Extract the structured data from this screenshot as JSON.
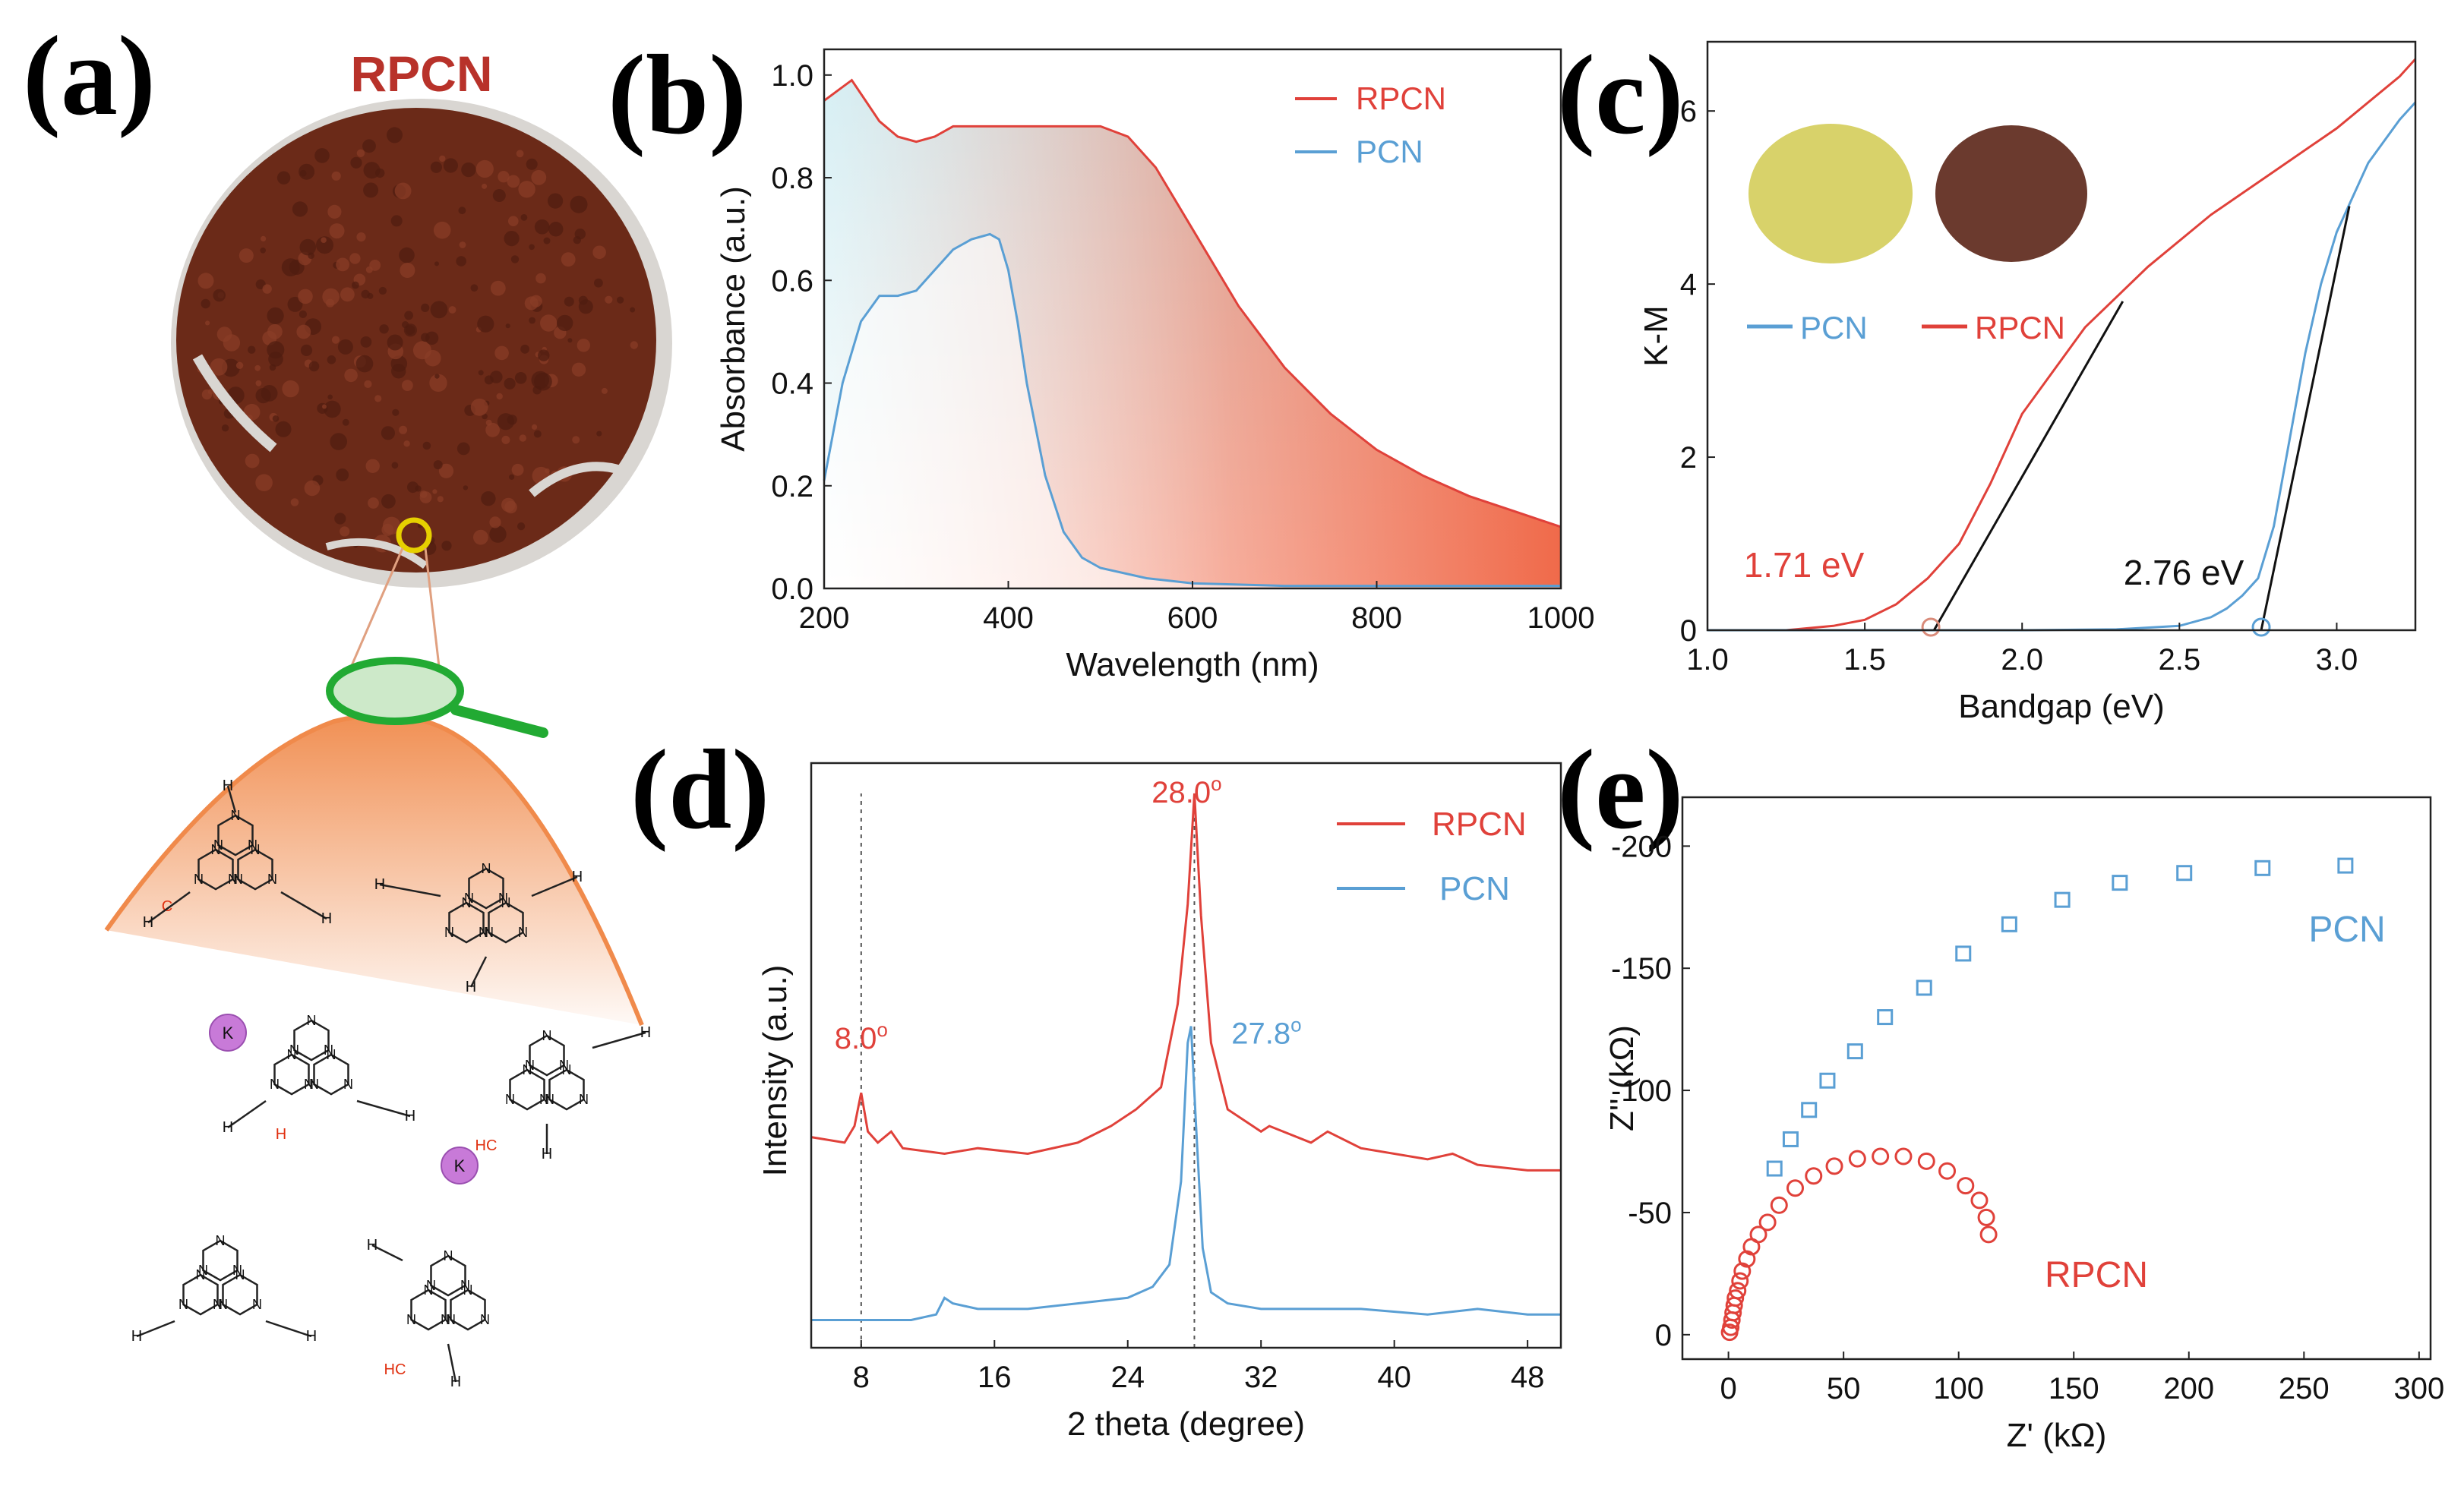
{
  "panel_labels": {
    "a": "(a)",
    "b": "(b)",
    "c": "(c)",
    "d": "(d)",
    "e": "(e)"
  },
  "panel_a": {
    "title": "RPCN",
    "photo_color": "#6b2a18",
    "wedge_color": "#f08a4b",
    "magnifier_color": "#22aa33",
    "ion_label": "K",
    "ion_color": "#c87ad8",
    "defect_label_h": "H",
    "defect_label_c": "C",
    "defect_label_hc": "HC",
    "ring_atom_label": "N",
    "amine_label": "H",
    "defect_color": "#e03010",
    "circle_marker_color": "#e6d000"
  },
  "colors": {
    "rpcn": "#e0413a",
    "pcn": "#5a9fd4",
    "fill_blue": "#bfe6ee",
    "fill_red": "#f06a4a"
  },
  "chart_data": [
    {
      "panel": "b",
      "type": "area",
      "xlabel": "Wavelength (nm)",
      "ylabel": "Absorbance (a.u.)",
      "xlim": [
        200,
        1000
      ],
      "ylim": [
        0,
        1.05
      ],
      "xticks": [
        200,
        400,
        600,
        800,
        1000
      ],
      "xtick_labels": [
        "200",
        "400",
        "600",
        "800",
        "1000"
      ],
      "yticks": [
        0.0,
        0.2,
        0.4,
        0.6,
        0.8,
        1.0
      ],
      "ytick_labels": [
        "0.0",
        "0.2",
        "0.4",
        "0.6",
        "0.8",
        "1.0"
      ],
      "legend": "top-right",
      "series": [
        {
          "name": "RPCN",
          "x": [
            200,
            215,
            230,
            245,
            260,
            280,
            300,
            320,
            340,
            360,
            400,
            450,
            500,
            530,
            560,
            600,
            650,
            700,
            750,
            800,
            850,
            900,
            950,
            1000
          ],
          "y": [
            0.95,
            0.97,
            0.99,
            0.95,
            0.91,
            0.88,
            0.87,
            0.88,
            0.9,
            0.9,
            0.9,
            0.9,
            0.9,
            0.88,
            0.82,
            0.7,
            0.55,
            0.43,
            0.34,
            0.27,
            0.22,
            0.18,
            0.15,
            0.12
          ]
        },
        {
          "name": "PCN",
          "x": [
            200,
            220,
            240,
            260,
            280,
            300,
            320,
            340,
            360,
            380,
            390,
            400,
            410,
            420,
            440,
            460,
            480,
            500,
            550,
            600,
            700,
            800,
            900,
            1000
          ],
          "y": [
            0.21,
            0.4,
            0.52,
            0.57,
            0.57,
            0.58,
            0.62,
            0.66,
            0.68,
            0.69,
            0.68,
            0.62,
            0.52,
            0.4,
            0.22,
            0.11,
            0.06,
            0.04,
            0.02,
            0.01,
            0.005,
            0.005,
            0.005,
            0.005
          ]
        }
      ]
    },
    {
      "panel": "c",
      "type": "line",
      "xlabel": "Bandgap (eV)",
      "ylabel": "K-M",
      "xlim": [
        1.0,
        3.25
      ],
      "ylim": [
        0,
        6.8
      ],
      "xticks": [
        1.0,
        1.5,
        2.0,
        2.5,
        3.0
      ],
      "xtick_labels": [
        "1.0",
        "1.5",
        "2.0",
        "2.5",
        "3.0"
      ],
      "yticks": [
        0,
        2,
        4,
        6
      ],
      "ytick_labels": [
        "0",
        "2",
        "4",
        "6"
      ],
      "legend": "middle-left",
      "series": [
        {
          "name": "PCN",
          "x": [
            1.0,
            1.5,
            2.0,
            2.3,
            2.5,
            2.6,
            2.65,
            2.7,
            2.75,
            2.8,
            2.85,
            2.9,
            2.95,
            3.0,
            3.1,
            3.2,
            3.25
          ],
          "y": [
            0,
            0,
            0,
            0.01,
            0.05,
            0.15,
            0.25,
            0.4,
            0.6,
            1.2,
            2.2,
            3.2,
            4.0,
            4.6,
            5.4,
            5.9,
            6.1
          ]
        },
        {
          "name": "RPCN",
          "x": [
            1.0,
            1.25,
            1.4,
            1.5,
            1.6,
            1.7,
            1.8,
            1.9,
            2.0,
            2.2,
            2.4,
            2.6,
            2.8,
            3.0,
            3.2,
            3.25
          ],
          "y": [
            0,
            0,
            0.05,
            0.12,
            0.3,
            0.6,
            1.0,
            1.7,
            2.5,
            3.5,
            4.2,
            4.8,
            5.3,
            5.8,
            6.4,
            6.6
          ]
        }
      ],
      "tangents": [
        {
          "x": [
            1.72,
            2.32
          ],
          "y": [
            0,
            3.8
          ]
        },
        {
          "x": [
            2.76,
            3.04
          ],
          "y": [
            0,
            4.9
          ]
        }
      ],
      "markers": [
        {
          "x": 1.71,
          "y": 0
        },
        {
          "x": 2.76,
          "y": 0
        }
      ],
      "annotations": [
        "1.71 eV",
        "2.76 eV"
      ],
      "inset_colors": [
        "#d8d26a",
        "#6b3a2e"
      ]
    },
    {
      "panel": "d",
      "type": "line",
      "xlabel": "2 theta (degree)",
      "ylabel": "Intensity (a.u.)",
      "xlim": [
        5,
        50
      ],
      "ylim": [
        0,
        1
      ],
      "xticks": [
        8,
        16,
        24,
        32,
        40,
        48
      ],
      "xtick_labels": [
        "8",
        "16",
        "24",
        "32",
        "40",
        "48"
      ],
      "legend": "top-right",
      "series": [
        {
          "name": "RPCN",
          "x": [
            5,
            7,
            7.6,
            8.0,
            8.4,
            9,
            9.8,
            10.5,
            13,
            15,
            18,
            21,
            23,
            24.5,
            26,
            27,
            27.6,
            28.0,
            28.4,
            29,
            30,
            32,
            32.5,
            35,
            36,
            38,
            42,
            43.5,
            45,
            48,
            50
          ],
          "y": [
            0.38,
            0.37,
            0.4,
            0.46,
            0.39,
            0.37,
            0.39,
            0.36,
            0.35,
            0.36,
            0.35,
            0.37,
            0.4,
            0.43,
            0.47,
            0.62,
            0.8,
            1.0,
            0.78,
            0.55,
            0.43,
            0.39,
            0.4,
            0.37,
            0.39,
            0.36,
            0.34,
            0.35,
            0.33,
            0.32,
            0.32
          ]
        },
        {
          "name": "PCN",
          "x": [
            5,
            8,
            11,
            12.5,
            13,
            13.5,
            15,
            18,
            21,
            24,
            25.5,
            26.5,
            27.2,
            27.6,
            27.8,
            28.1,
            28.5,
            29,
            30,
            32,
            35,
            38,
            42,
            45,
            48,
            50
          ],
          "y": [
            0.05,
            0.05,
            0.05,
            0.06,
            0.09,
            0.08,
            0.07,
            0.07,
            0.08,
            0.09,
            0.11,
            0.15,
            0.3,
            0.55,
            0.58,
            0.4,
            0.18,
            0.1,
            0.08,
            0.07,
            0.07,
            0.07,
            0.06,
            0.07,
            0.06,
            0.06
          ]
        }
      ],
      "guide_lines": [
        8.0,
        28.0
      ],
      "annotations": [
        "8.0",
        "28.0",
        "27.8"
      ],
      "degree_mark": "o"
    },
    {
      "panel": "e",
      "type": "scatter",
      "xlabel": "Z' (kΩ)",
      "ylabel": "Z'' (kΩ)",
      "xlim": [
        -20,
        305
      ],
      "ylim": [
        10,
        -220
      ],
      "xticks": [
        0,
        50,
        100,
        150,
        200,
        250,
        300
      ],
      "xtick_labels": [
        "0",
        "50",
        "100",
        "150",
        "200",
        "250",
        "300"
      ],
      "yticks": [
        0,
        -50,
        -100,
        -150,
        -200
      ],
      "ytick_labels": [
        "0",
        "-50",
        "-100",
        "-150",
        "-200"
      ],
      "series": [
        {
          "name": "PCN",
          "marker": "square",
          "x": [
            20,
            27,
            35,
            43,
            55,
            68,
            85,
            102,
            122,
            145,
            170,
            198,
            232,
            268
          ],
          "y": [
            -68,
            -80,
            -92,
            -104,
            -116,
            -130,
            -142,
            -156,
            -168,
            -178,
            -185,
            -189,
            -191,
            -192
          ]
        },
        {
          "name": "RPCN",
          "marker": "circle",
          "x": [
            0.5,
            1,
            1.5,
            2,
            2.5,
            3,
            4,
            5,
            6,
            8,
            10,
            13,
            17,
            22,
            29,
            37,
            46,
            56,
            66,
            76,
            86,
            95,
            103,
            109,
            112,
            113
          ],
          "y": [
            -1,
            -3,
            -6,
            -9,
            -12,
            -15,
            -18,
            -22,
            -26,
            -31,
            -36,
            -41,
            -46,
            -53,
            -60,
            -65,
            -69,
            -72,
            -73,
            -73,
            -71,
            -67,
            -61,
            -55,
            -48,
            -41
          ]
        }
      ]
    }
  ]
}
